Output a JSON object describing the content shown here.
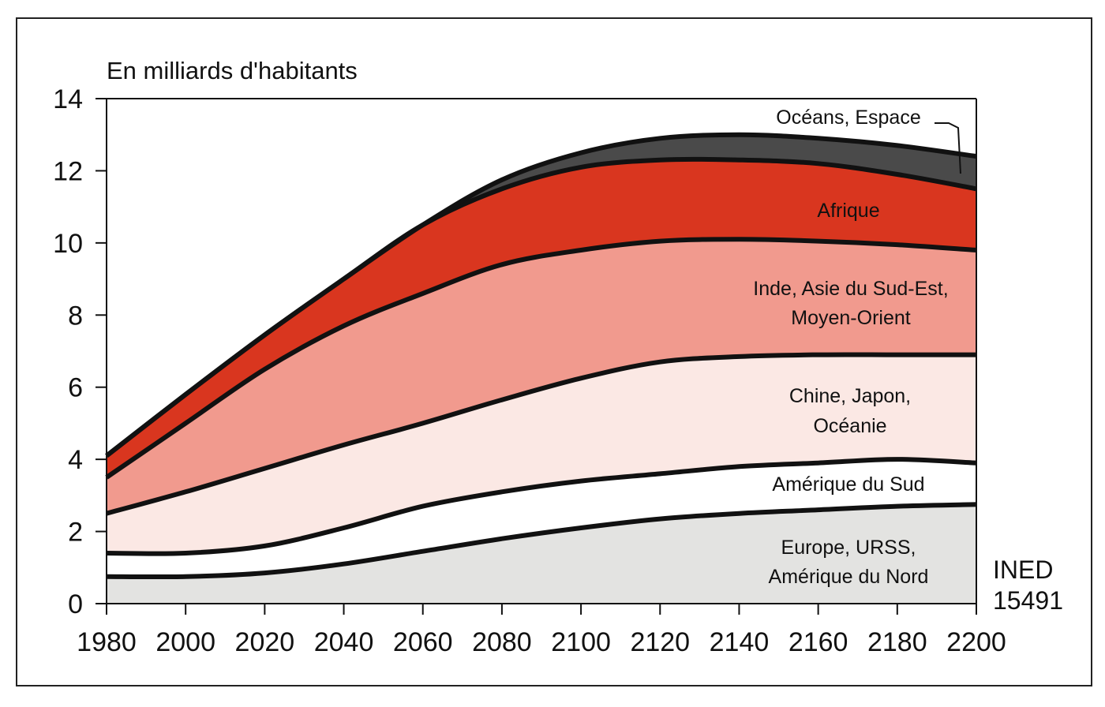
{
  "chart_data": {
    "type": "area",
    "stacked": true,
    "ylabel": "En milliards d'habitants",
    "ylim": [
      0,
      14
    ],
    "xlim": [
      1980,
      2200
    ],
    "x_ticks": [
      "1980",
      "2000",
      "2020",
      "2040",
      "2060",
      "2080",
      "2100",
      "2120",
      "2140",
      "2160",
      "2180",
      "2200"
    ],
    "y_ticks": [
      "0",
      "2",
      "4",
      "6",
      "8",
      "10",
      "12",
      "14"
    ],
    "x": [
      1980,
      2000,
      2020,
      2040,
      2060,
      2080,
      2100,
      2120,
      2140,
      2160,
      2180,
      2200
    ],
    "series": [
      {
        "name": "Europe, URSS, Amérique du Nord",
        "color": "#e3e3e1",
        "cumulative": [
          0.75,
          0.75,
          0.85,
          1.1,
          1.45,
          1.8,
          2.1,
          2.35,
          2.5,
          2.6,
          2.7,
          2.75
        ]
      },
      {
        "name": "Amérique du Sud",
        "color": "#ffffff",
        "cumulative": [
          1.4,
          1.4,
          1.6,
          2.1,
          2.7,
          3.1,
          3.4,
          3.6,
          3.8,
          3.9,
          4.0,
          3.9
        ]
      },
      {
        "name": "Chine, Japon, Océanie",
        "color": "#fbe8e4",
        "cumulative": [
          2.5,
          3.1,
          3.75,
          4.4,
          5.0,
          5.65,
          6.25,
          6.7,
          6.85,
          6.9,
          6.9,
          6.9
        ]
      },
      {
        "name": "Inde, Asie du Sud-Est, Moyen-Orient",
        "color": "#f19a8e",
        "cumulative": [
          3.5,
          5.0,
          6.5,
          7.7,
          8.6,
          9.4,
          9.8,
          10.05,
          10.1,
          10.05,
          9.95,
          9.8
        ]
      },
      {
        "name": "Afrique",
        "color": "#d9361f",
        "cumulative": [
          4.1,
          5.8,
          7.45,
          9.0,
          10.5,
          11.5,
          12.1,
          12.3,
          12.3,
          12.2,
          11.9,
          11.5
        ]
      },
      {
        "name": "Océans, Espace",
        "color": "#4a4a4a",
        "cumulative": [
          4.1,
          5.8,
          7.45,
          9.0,
          10.5,
          11.75,
          12.5,
          12.9,
          13.0,
          12.9,
          12.7,
          12.4
        ]
      }
    ],
    "labels": {
      "europe": [
        "Europe, URSS,",
        "Amérique du Nord"
      ],
      "amerique_sud": [
        "Amérique du Sud"
      ],
      "chine": [
        "Chine, Japon,",
        "Océanie"
      ],
      "inde": [
        "Inde, Asie du Sud-Est,",
        "Moyen-Orient"
      ],
      "afrique": [
        "Afrique"
      ],
      "oceans": [
        "Océans, Espace"
      ]
    },
    "source": [
      "INED",
      "15491"
    ]
  }
}
